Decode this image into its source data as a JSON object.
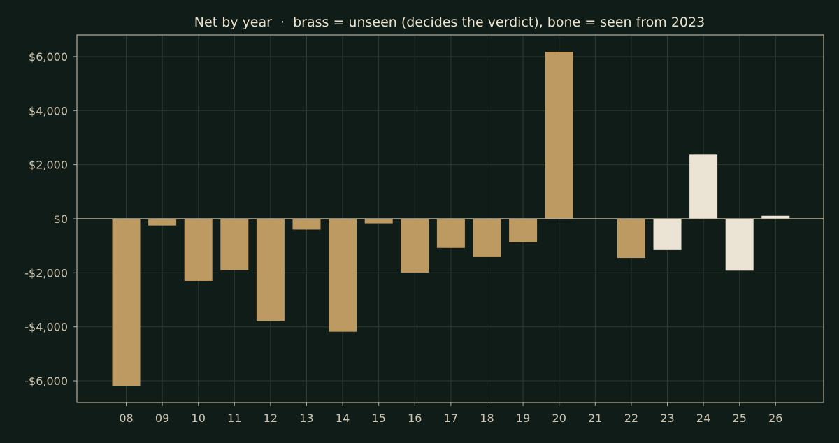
{
  "chart_data": {
    "type": "bar",
    "title": "Net by year  ·  brass = unseen (decides the verdict), bone = seen from 2023",
    "xlabel": "",
    "ylabel": "",
    "categories": [
      "08",
      "09",
      "10",
      "11",
      "12",
      "13",
      "14",
      "15",
      "16",
      "17",
      "18",
      "19",
      "20",
      "21",
      "22",
      "23",
      "24",
      "25",
      "26"
    ],
    "values": [
      -6180,
      -250,
      -2300,
      -1900,
      -3780,
      -400,
      -4180,
      -170,
      -1990,
      -1080,
      -1420,
      -870,
      6180,
      0,
      -1450,
      -1160,
      2370,
      -1920,
      110
    ],
    "groups": [
      "unseen",
      "unseen",
      "unseen",
      "unseen",
      "unseen",
      "unseen",
      "unseen",
      "unseen",
      "unseen",
      "unseen",
      "unseen",
      "unseen",
      "unseen",
      "unseen",
      "unseen",
      "seen",
      "seen",
      "seen",
      "seen"
    ],
    "yticks": [
      -6000,
      -4000,
      -2000,
      0,
      2000,
      4000,
      6000
    ],
    "ytick_labels": [
      "-$6,000",
      "-$4,000",
      "-$2,000",
      "$0",
      "$2,000",
      "$4,000",
      "$6,000"
    ],
    "ylim": [
      -6800,
      6800
    ],
    "grid": true,
    "colors": {
      "unseen": "#bd9a62",
      "seen": "#ebe4d4",
      "background": "#101c17",
      "grid": "#2a3a30",
      "axis": "#b7b09c",
      "text": "#cfc7b3"
    }
  }
}
